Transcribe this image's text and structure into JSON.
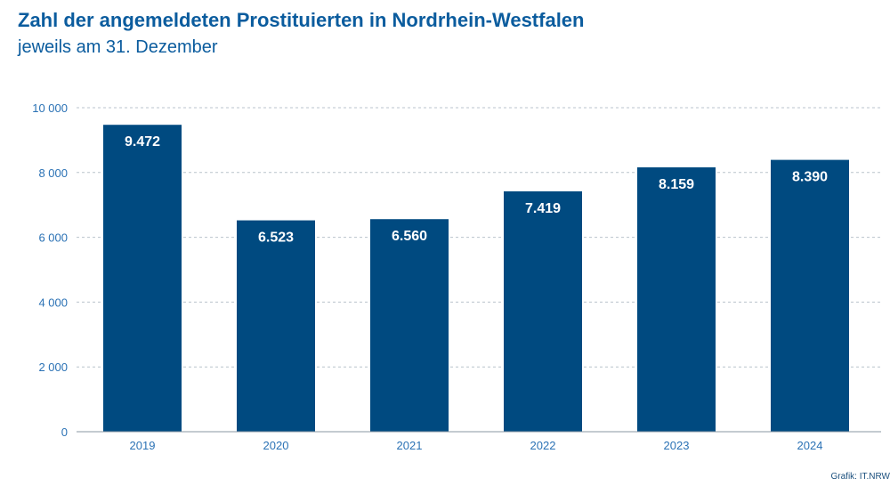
{
  "header": {
    "title": "Zahl der angemeldeten Prostituierten in Nordrhein-Westfalen",
    "subtitle": "jeweils am 31. Dezember"
  },
  "footer": {
    "source": "Grafik: IT.NRW"
  },
  "colors": {
    "bar": "#004a80",
    "title": "#0b5c9e",
    "axis_text": "#2b72b5",
    "grid": "#b9c3cc"
  },
  "chart_data": {
    "type": "bar",
    "title": "Zahl der angemeldeten Prostituierten in Nordrhein-Westfalen",
    "subtitle": "jeweils am 31. Dezember",
    "categories": [
      "2019",
      "2020",
      "2021",
      "2022",
      "2023",
      "2024"
    ],
    "values": [
      9472,
      6523,
      6560,
      7419,
      8159,
      8390
    ],
    "value_labels": [
      "9.472",
      "6.523",
      "6.560",
      "7.419",
      "8.159",
      "8.390"
    ],
    "yticks": [
      0,
      2000,
      4000,
      6000,
      8000,
      10000
    ],
    "ytick_labels": [
      "0",
      "2 000",
      "4 000",
      "6 000",
      "8 000",
      "10 000"
    ],
    "ylim": [
      0,
      10000
    ],
    "xlabel": "",
    "ylabel": "",
    "grid": true,
    "legend": "none"
  }
}
